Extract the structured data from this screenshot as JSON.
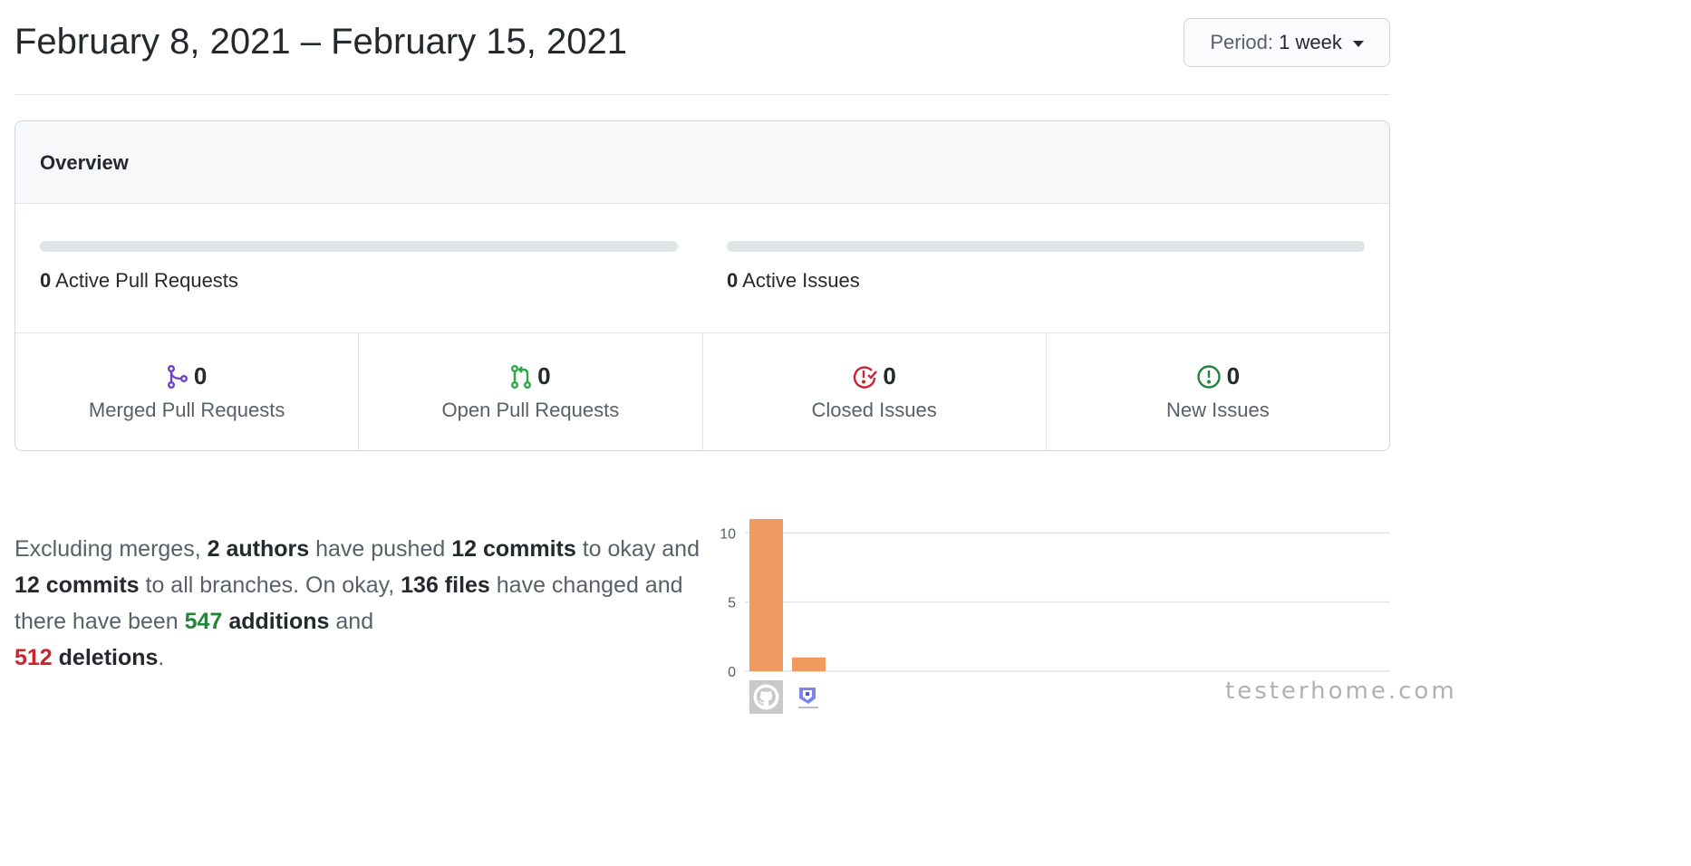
{
  "header": {
    "title": "February 8, 2021 – February 15, 2021",
    "period_label": "Period:",
    "period_value": "1 week"
  },
  "overview": {
    "title": "Overview",
    "active_pull_requests": {
      "count": "0",
      "label": "Active Pull Requests",
      "fraction": 0
    },
    "active_issues": {
      "count": "0",
      "label": "Active Issues",
      "fraction": 0
    },
    "stats": [
      {
        "icon": "merge-icon",
        "count": "0",
        "label": "Merged Pull Requests",
        "color": "#6f42c1"
      },
      {
        "icon": "pull-request-icon",
        "count": "0",
        "label": "Open Pull Requests",
        "color": "#28a745"
      },
      {
        "icon": "issue-closed-icon",
        "count": "0",
        "label": "Closed Issues",
        "color": "#cb2431"
      },
      {
        "icon": "issue-opened-icon",
        "count": "0",
        "label": "New Issues",
        "color": "#22863a"
      }
    ]
  },
  "summary": {
    "p1": "Excluding merges, ",
    "authors": "2 authors",
    "p2": " have pushed ",
    "commits_default": "12 commits",
    "p3": " to okay and ",
    "commits_all": "12 commits",
    "p4": " to all branches. On okay, ",
    "files": "136 files",
    "p5": " have changed and there have been ",
    "additions_num": "547",
    "additions_word": " additions",
    "p6": " and ",
    "deletions_num": "512",
    "deletions_word": " deletions",
    "p7": "."
  },
  "chart_data": {
    "type": "bar",
    "categories": [
      "github-avatar",
      "user-avatar"
    ],
    "values": [
      11,
      1
    ],
    "ylim": [
      0,
      11
    ],
    "yticks": [
      0,
      5,
      10
    ],
    "ytick_labels": [
      "0",
      "5",
      "10"
    ],
    "grid": true,
    "bar_color": "#f09a62"
  },
  "watermark": "testerhome.com"
}
